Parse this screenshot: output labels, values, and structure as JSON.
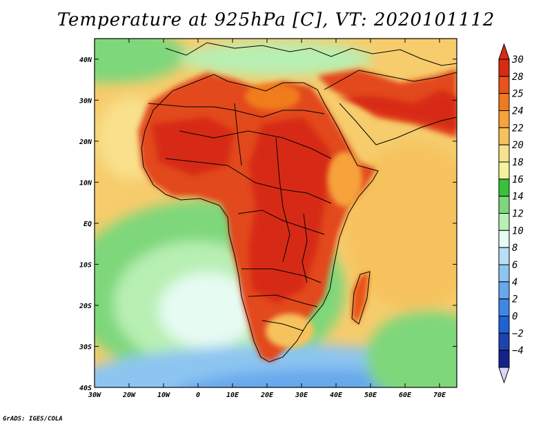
{
  "title": "Temperature at 925hPa [C], VT: 2020101112",
  "credit": "GrADS: IGES/COLA",
  "map": {
    "lon_range": [
      -30,
      75
    ],
    "lat_range": [
      -40,
      45
    ],
    "x_ticks": [
      {
        "lon": -30,
        "label": "30W"
      },
      {
        "lon": -20,
        "label": "20W"
      },
      {
        "lon": -10,
        "label": "10W"
      },
      {
        "lon": 0,
        "label": "0"
      },
      {
        "lon": 10,
        "label": "10E"
      },
      {
        "lon": 20,
        "label": "20E"
      },
      {
        "lon": 30,
        "label": "30E"
      },
      {
        "lon": 40,
        "label": "40E"
      },
      {
        "lon": 50,
        "label": "50E"
      },
      {
        "lon": 60,
        "label": "60E"
      },
      {
        "lon": 70,
        "label": "70E"
      }
    ],
    "y_ticks": [
      {
        "lat": 40,
        "label": "40N"
      },
      {
        "lat": 30,
        "label": "30N"
      },
      {
        "lat": 20,
        "label": "20N"
      },
      {
        "lat": 10,
        "label": "10N"
      },
      {
        "lat": 0,
        "label": "EQ"
      },
      {
        "lat": -10,
        "label": "10S"
      },
      {
        "lat": -20,
        "label": "20S"
      },
      {
        "lat": -30,
        "label": "30S"
      },
      {
        "lat": -40,
        "label": "40S"
      }
    ],
    "land_color": "#e2491f",
    "ocean_warm": "#f6cc6c"
  },
  "colorbar": {
    "levels": [
      {
        "label": "30",
        "color": "#d72c12"
      },
      {
        "label": "28",
        "color": "#e95219"
      },
      {
        "label": "25",
        "color": "#f07b1e"
      },
      {
        "label": "24",
        "color": "#f7a23a"
      },
      {
        "label": "22",
        "color": "#f6c25d"
      },
      {
        "label": "20",
        "color": "#f8e08c"
      },
      {
        "label": "18",
        "color": "#f4f29c"
      },
      {
        "label": "16",
        "color": "#38c23a"
      },
      {
        "label": "14",
        "color": "#7ed77a"
      },
      {
        "label": "12",
        "color": "#b8efb3"
      },
      {
        "label": "10",
        "color": "#e6fbf2"
      },
      {
        "label": "8",
        "color": "#b6dff6"
      },
      {
        "label": "6",
        "color": "#8cc5f1"
      },
      {
        "label": "4",
        "color": "#67a8ec"
      },
      {
        "label": "2",
        "color": "#3f87e6"
      },
      {
        "label": "0",
        "color": "#1f62d4"
      },
      {
        "label": "−2",
        "color": "#1c43b0"
      },
      {
        "label": "−4",
        "color": "#14238a"
      }
    ],
    "under_color": "#d8d8f6"
  }
}
